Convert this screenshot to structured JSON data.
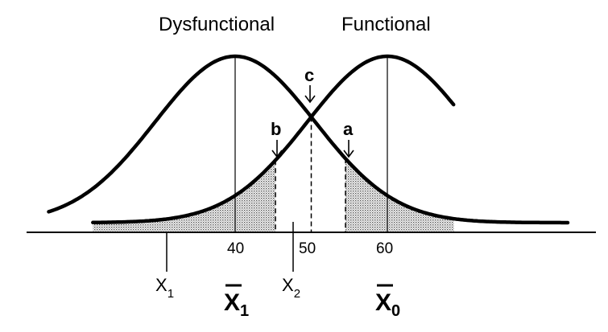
{
  "labels": {
    "dysfunctional": "Dysfunctional",
    "functional": "Functional",
    "a": "a",
    "b": "b",
    "c": "c"
  },
  "ticks": [
    "40",
    "50",
    "60"
  ],
  "x_labels": {
    "x1_letter": "X",
    "x1_sub": "1",
    "x2_letter": "X",
    "x2_sub": "2",
    "xbar1_letter": "X",
    "xbar1_sub": "1",
    "xbar0_letter": "X",
    "xbar0_sub": "0"
  },
  "distributions": {
    "dysfunctional_mean": 40,
    "functional_mean": 60,
    "crossover": 50
  },
  "colors": {
    "ink": "#000000",
    "shade": "#9a9a9a"
  }
}
